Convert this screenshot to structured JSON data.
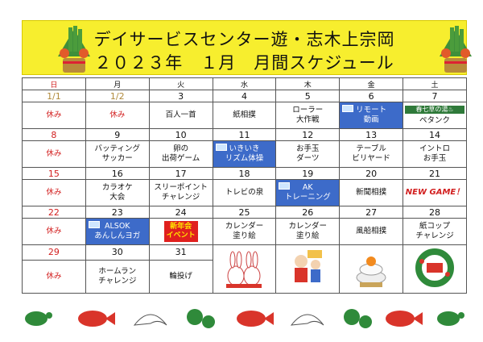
{
  "header": {
    "title_line1": "デイサービスセンター遊・志木上宗岡",
    "title_line2": "２０２３年　１月　月間スケジュール"
  },
  "weekdays": [
    "日",
    "月",
    "火",
    "水",
    "木",
    "金",
    "土"
  ],
  "weeks": [
    {
      "dates": [
        "1/1",
        "1/2",
        "3",
        "4",
        "5",
        "6",
        "7"
      ],
      "activities": [
        "休み",
        "休み",
        "百人一首",
        "紙相撲",
        "ローラー\n大作戦",
        "リモート\n動画",
        "ペタンク"
      ],
      "tag": "春七草の湯♨"
    },
    {
      "dates": [
        "8",
        "9",
        "10",
        "11",
        "12",
        "13",
        "14"
      ],
      "activities": [
        "休み",
        "バッティング\nサッカー",
        "卵の\n出荷ゲーム",
        "いきいき\nリズム体操",
        "お手玉\nダーツ",
        "テーブル\nビリヤード",
        "イントロ\nお手玉"
      ]
    },
    {
      "dates": [
        "15",
        "16",
        "17",
        "18",
        "19",
        "20",
        "21"
      ],
      "activities": [
        "休み",
        "カラオケ\n大会",
        "スリーポイント\nチャレンジ",
        "トレビの泉",
        "AK\nトレーニング",
        "新聞相撲",
        "NEW GAME！"
      ]
    },
    {
      "dates": [
        "22",
        "23",
        "24",
        "25",
        "26",
        "27",
        "28"
      ],
      "activities": [
        "休み",
        "ALSOK\nあんしんヨガ",
        "新年会\nイベント",
        "カレンダー\n塗り絵",
        "カレンダー\n塗り絵",
        "風船相撲",
        "紙コップ\nチャレンジ"
      ]
    },
    {
      "dates": [
        "29",
        "30",
        "31"
      ],
      "activities": [
        "休み",
        "ホームラン\nチャレンジ",
        "輪投げ"
      ]
    }
  ],
  "colors": {
    "header_bg": "#f7ee2e",
    "sunday": "#d21f1f",
    "highlight": "#3d6bc9",
    "event": "#e0201e"
  }
}
